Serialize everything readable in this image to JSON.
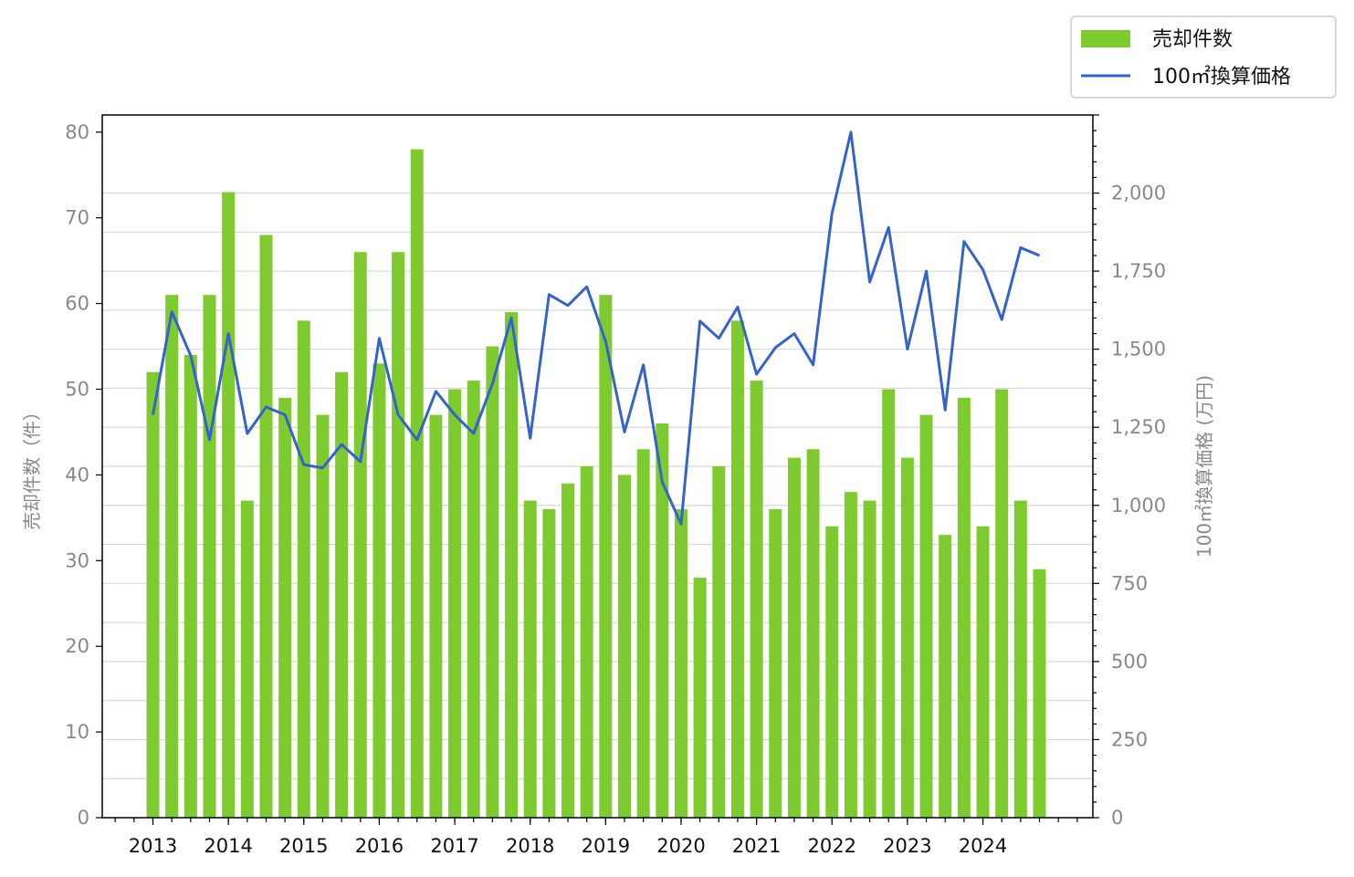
{
  "chart_data": {
    "type": "bar+line",
    "x_tick_labels": [
      "2013",
      "2014",
      "2015",
      "2016",
      "2017",
      "2018",
      "2019",
      "2020",
      "2021",
      "2022",
      "2023",
      "2024"
    ],
    "series": [
      {
        "name": "売却件数",
        "type": "bar",
        "axis": "left",
        "values": [
          52,
          61,
          54,
          61,
          73,
          37,
          68,
          49,
          58,
          47,
          52,
          66,
          53,
          66,
          78,
          47,
          50,
          51,
          55,
          59,
          37,
          36,
          39,
          41,
          61,
          40,
          43,
          46,
          36,
          28,
          41,
          58,
          51,
          36,
          42,
          43,
          34,
          38,
          37,
          50,
          42,
          47,
          33,
          49,
          34,
          50,
          37,
          29
        ]
      },
      {
        "name": "100㎡換算価格",
        "type": "line",
        "axis": "right",
        "values": [
          1290,
          1620,
          1480,
          1210,
          1550,
          1230,
          1315,
          1290,
          1130,
          1120,
          1195,
          1140,
          1535,
          1290,
          1210,
          1365,
          1290,
          1230,
          1390,
          1600,
          1215,
          1675,
          1640,
          1700,
          1525,
          1235,
          1450,
          1075,
          940,
          1590,
          1535,
          1635,
          1420,
          1505,
          1550,
          1450,
          1935,
          2195,
          1715,
          1890,
          1500,
          1750,
          1305,
          1845,
          1755,
          1595,
          1825,
          1800
        ]
      }
    ],
    "y_left": {
      "label": "売却件数（件）",
      "range": [
        0,
        82
      ],
      "ticks": [
        "0",
        "10",
        "20",
        "30",
        "40",
        "50",
        "60",
        "70",
        "80"
      ]
    },
    "y_right": {
      "label": "100㎡換算価格 (万円)",
      "range": [
        0,
        2250
      ],
      "ticks": [
        "0",
        "250",
        "500",
        "750",
        "1,000",
        "1,250",
        "1,500",
        "1,750",
        "2,000"
      ]
    },
    "colors": {
      "bar": "#7ecb2f",
      "line": "#3463c9",
      "grid": "#d8d8d8",
      "tick_text": "#888888",
      "x_tick_text": "#111111"
    },
    "legend": {
      "placement": "top-right",
      "entries": [
        "売却件数",
        "100㎡換算価格"
      ]
    },
    "grid": "horizontal"
  }
}
